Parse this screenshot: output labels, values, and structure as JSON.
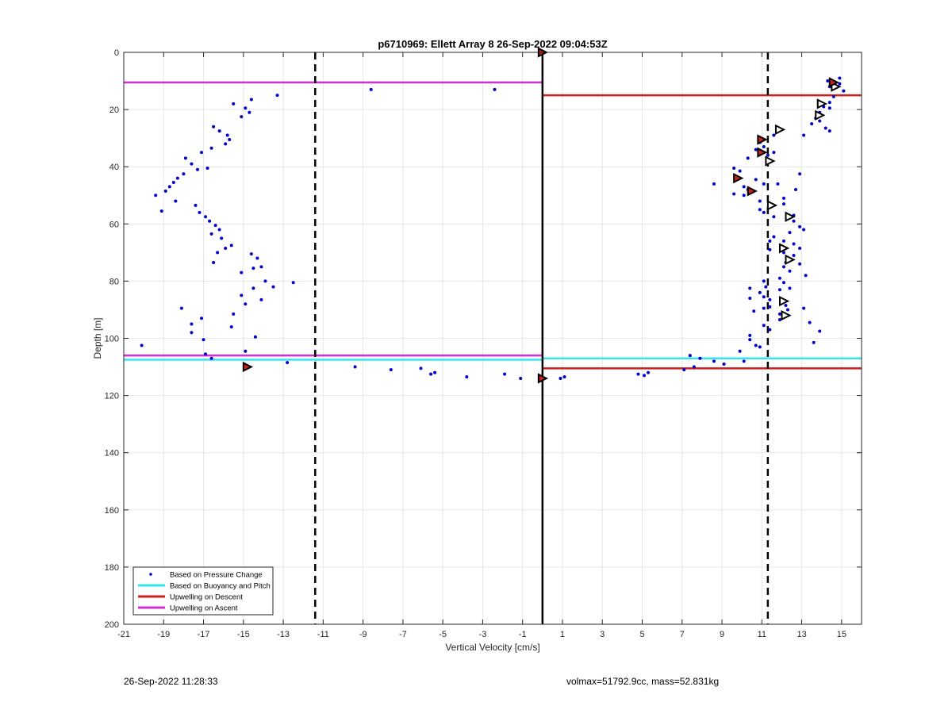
{
  "chart_data": {
    "type": "scatter",
    "title": "p6710969: Ellett Array 8 26-Sep-2022 09:04:53Z",
    "xlabel": "Vertical Velocity [cm/s]",
    "ylabel": "Depth [m]",
    "xlim": [
      -21,
      16
    ],
    "ylim": [
      0,
      200
    ],
    "y_reversed": true,
    "x_ticks": [
      -21,
      -19,
      -17,
      -15,
      -13,
      -11,
      -9,
      -7,
      -5,
      -3,
      -1,
      1,
      3,
      5,
      7,
      9,
      11,
      13,
      15
    ],
    "y_ticks": [
      0,
      20,
      40,
      60,
      80,
      100,
      120,
      140,
      160,
      180,
      200
    ],
    "grid": true,
    "legend_position": "bottom-left",
    "legend": [
      {
        "label": "Based on Pressure Change",
        "color": "#0000cc",
        "kind": "marker"
      },
      {
        "label": "Based on Buoyancy and Pitch",
        "color": "#33e5ee",
        "kind": "line"
      },
      {
        "label": "Upwelling on Descent",
        "color": "#cc1f1f",
        "kind": "line"
      },
      {
        "label": "Upwelling on Ascent",
        "color": "#d62ed6",
        "kind": "line"
      }
    ],
    "pressure_change_points": [
      [
        -15.5,
        18
      ],
      [
        -14.9,
        19.5
      ],
      [
        -14.7,
        21
      ],
      [
        -14.6,
        16.5
      ],
      [
        -15.1,
        22.5
      ],
      [
        -13.3,
        15
      ],
      [
        -16.5,
        26
      ],
      [
        -16.2,
        27.5
      ],
      [
        -15.8,
        29
      ],
      [
        -15.7,
        30.5
      ],
      [
        -15.9,
        32
      ],
      [
        -16.6,
        33.5
      ],
      [
        -17.1,
        35
      ],
      [
        -17.9,
        37
      ],
      [
        -17.6,
        39
      ],
      [
        -17.3,
        41
      ],
      [
        -16.8,
        40.5
      ],
      [
        -18,
        42.5
      ],
      [
        -18.3,
        44
      ],
      [
        -18.5,
        45.5
      ],
      [
        -18.7,
        47
      ],
      [
        -18.9,
        48.5
      ],
      [
        -19.4,
        50
      ],
      [
        -18.4,
        52
      ],
      [
        -19.1,
        55.5
      ],
      [
        -17.4,
        53.5
      ],
      [
        -17.2,
        56
      ],
      [
        -16.9,
        57.5
      ],
      [
        -16.7,
        59
      ],
      [
        -16.4,
        60.5
      ],
      [
        -16.2,
        62
      ],
      [
        -16.6,
        63.5
      ],
      [
        -16.1,
        65
      ],
      [
        -15.9,
        68.5
      ],
      [
        -15.6,
        67.5
      ],
      [
        -16.3,
        70
      ],
      [
        -14.6,
        70.5
      ],
      [
        -14.3,
        72
      ],
      [
        -14.1,
        75
      ],
      [
        -14.5,
        75.5
      ],
      [
        -15.1,
        77
      ],
      [
        -16.5,
        73.5
      ],
      [
        -13.9,
        80
      ],
      [
        -13.5,
        82
      ],
      [
        -14.5,
        82.5
      ],
      [
        -15.1,
        85
      ],
      [
        -14.1,
        86.5
      ],
      [
        -14.9,
        88
      ],
      [
        -12.5,
        80.5
      ],
      [
        -18.1,
        89.5
      ],
      [
        -15.5,
        91.5
      ],
      [
        -17.1,
        93
      ],
      [
        -17.6,
        95
      ],
      [
        -17.6,
        98
      ],
      [
        -15.6,
        96
      ],
      [
        -17,
        100.5
      ],
      [
        -14.4,
        99.5
      ],
      [
        -20.1,
        102.5
      ],
      [
        -16.9,
        105.5
      ],
      [
        -16.6,
        107
      ],
      [
        -14.9,
        104.5
      ],
      [
        -12.8,
        108.5
      ],
      [
        -8.6,
        13
      ],
      [
        -2.4,
        13
      ],
      [
        -9.4,
        110
      ],
      [
        -7.6,
        111
      ],
      [
        -6.1,
        110.5
      ],
      [
        -5.4,
        112
      ],
      [
        -5.6,
        112.5
      ],
      [
        -3.8,
        113.5
      ],
      [
        -1.9,
        112.5
      ],
      [
        -1.1,
        114
      ],
      [
        0.9,
        114
      ],
      [
        1.1,
        113.5
      ],
      [
        4.8,
        112.5
      ],
      [
        5.1,
        113
      ],
      [
        5.3,
        112
      ],
      [
        7.1,
        111
      ],
      [
        7.4,
        106
      ],
      [
        7.6,
        110
      ],
      [
        7.9,
        107
      ],
      [
        8.6,
        108
      ],
      [
        9.1,
        109
      ],
      [
        9.6,
        40.5
      ],
      [
        9.9,
        41.5
      ],
      [
        10.1,
        47
      ],
      [
        8.6,
        46
      ],
      [
        10.3,
        48
      ],
      [
        9.6,
        49.5
      ],
      [
        10.1,
        50
      ],
      [
        10.7,
        44.5
      ],
      [
        11.1,
        46
      ],
      [
        10.9,
        52
      ],
      [
        10.9,
        55
      ],
      [
        11.1,
        56
      ],
      [
        10.3,
        37
      ],
      [
        10.7,
        34
      ],
      [
        10.9,
        31.5
      ],
      [
        11.1,
        33
      ],
      [
        11.6,
        35
      ],
      [
        11.3,
        36
      ],
      [
        11.6,
        29
      ],
      [
        12.9,
        42.5
      ],
      [
        12.7,
        48
      ],
      [
        11.8,
        46
      ],
      [
        12.1,
        51
      ],
      [
        12.1,
        53
      ],
      [
        11.6,
        57.5
      ],
      [
        12.6,
        57
      ],
      [
        12.6,
        59
      ],
      [
        12.9,
        61
      ],
      [
        13.1,
        62
      ],
      [
        12.4,
        63
      ],
      [
        11.6,
        64.5
      ],
      [
        12.1,
        66
      ],
      [
        11.4,
        66
      ],
      [
        12.6,
        67
      ],
      [
        11.4,
        69
      ],
      [
        12.9,
        68.5
      ],
      [
        12.1,
        70
      ],
      [
        12.6,
        71
      ],
      [
        12.2,
        73.5
      ],
      [
        12.9,
        74
      ],
      [
        12.1,
        75
      ],
      [
        12.4,
        76.5
      ],
      [
        13.2,
        78
      ],
      [
        11.9,
        79
      ],
      [
        12.1,
        80.5
      ],
      [
        11.9,
        83
      ],
      [
        12.4,
        82.5
      ],
      [
        11.1,
        80
      ],
      [
        11.2,
        82
      ],
      [
        10.4,
        82.5
      ],
      [
        10.9,
        84
      ],
      [
        11.1,
        85.5
      ],
      [
        10.4,
        86
      ],
      [
        11.4,
        86.5
      ],
      [
        12.2,
        88.5
      ],
      [
        11.4,
        89
      ],
      [
        11.1,
        89.5
      ],
      [
        10.6,
        90.5
      ],
      [
        11.9,
        91.5
      ],
      [
        12.3,
        90
      ],
      [
        13.1,
        89.5
      ],
      [
        13.9,
        97.5
      ],
      [
        13.6,
        101.5
      ],
      [
        13.4,
        94.5
      ],
      [
        11.9,
        93.5
      ],
      [
        11.1,
        95.5
      ],
      [
        11.4,
        97
      ],
      [
        10.4,
        99
      ],
      [
        10.4,
        100.5
      ],
      [
        10.7,
        102.5
      ],
      [
        9.9,
        104.5
      ],
      [
        10.1,
        108
      ],
      [
        10.9,
        103
      ],
      [
        14.4,
        12
      ],
      [
        14.3,
        10
      ],
      [
        14.9,
        11
      ],
      [
        15.1,
        13.5
      ],
      [
        14.9,
        9
      ],
      [
        14.6,
        15.5
      ],
      [
        14.4,
        17.5
      ],
      [
        14.1,
        19
      ],
      [
        14.4,
        19.5
      ],
      [
        13.9,
        21
      ],
      [
        13.7,
        23
      ],
      [
        13.9,
        24
      ],
      [
        13.5,
        25
      ],
      [
        14.2,
        26.5
      ],
      [
        14.4,
        27.5
      ],
      [
        13.1,
        29
      ]
    ],
    "glider_markers_descent": [
      [
        0,
        0
      ],
      [
        14.6,
        10.5
      ],
      [
        11,
        30.5
      ],
      [
        11,
        35
      ],
      [
        9.8,
        44
      ],
      [
        10.5,
        48.5
      ],
      [
        0,
        114
      ],
      [
        -14.8,
        110
      ]
    ],
    "glider_markers_ascent": [
      [
        14.7,
        12
      ],
      [
        14,
        18
      ],
      [
        13.9,
        22
      ],
      [
        11.9,
        27
      ],
      [
        11.4,
        38
      ],
      [
        11.5,
        53.5
      ],
      [
        12.4,
        57.5
      ],
      [
        12.1,
        68.5
      ],
      [
        12.4,
        72.5
      ],
      [
        12.1,
        87
      ],
      [
        12.2,
        92
      ]
    ],
    "horizontal_lines": [
      {
        "series": "Upwelling on Ascent",
        "x0": -21,
        "x1": 0,
        "y": 10.5,
        "color": "#d62ed6"
      },
      {
        "series": "Upwelling on Descent",
        "x0": 0,
        "x1": 16,
        "y": 15,
        "color": "#cc1f1f"
      },
      {
        "series": "Upwelling on Ascent",
        "x0": -21,
        "x1": 0,
        "y": 106,
        "color": "#d62ed6"
      },
      {
        "series": "Based on Buoyancy and Pitch",
        "x0": -21,
        "x1": 0,
        "y": 107.5,
        "color": "#33e5ee"
      },
      {
        "series": "Based on Buoyancy and Pitch",
        "x0": 0,
        "x1": 16,
        "y": 107,
        "color": "#33e5ee"
      },
      {
        "series": "Upwelling on Descent",
        "x0": 0,
        "x1": 16,
        "y": 110.5,
        "color": "#cc1f1f"
      }
    ],
    "vertical_lines": [
      {
        "x": -11.4,
        "style": "dashed",
        "color": "#000000"
      },
      {
        "x": 11.3,
        "style": "dashed",
        "color": "#000000"
      },
      {
        "x": 0,
        "style": "solid",
        "color": "#000000"
      }
    ]
  },
  "footer": {
    "left": "26-Sep-2022 11:28:33",
    "right": "volmax=51792.9cc, mass=52.831kg"
  }
}
